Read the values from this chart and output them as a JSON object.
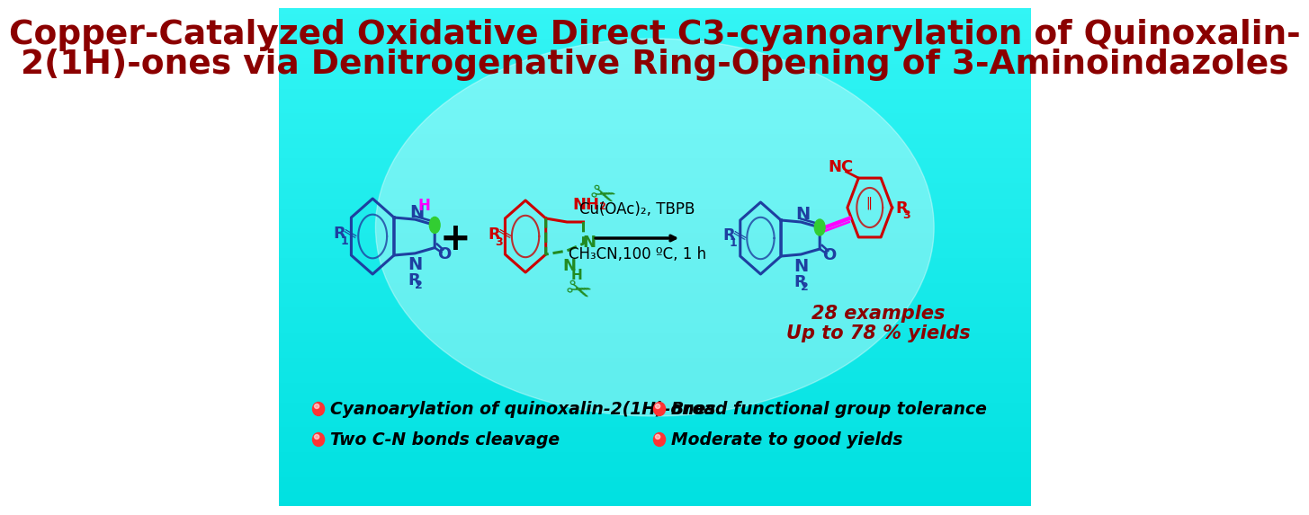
{
  "title_line1": "Copper-Catalyzed Oxidative Direct C3-cyanoarylation of Quinoxalin-",
  "title_line2": "2(1H)-ones via Denitrogenative Ring-Opening of 3-Aminoindazoles",
  "title_color": "#8B0000",
  "title_fontsize": 28,
  "conditions_line1": "Cu(OAc)₂, TBPB",
  "conditions_line2": "CH₃CN,100 ºC, 1 h",
  "bullet_points_left": [
    "Cyanoarylation of quinoxalin-2(1H)-ones",
    "Two C-N bonds cleavage"
  ],
  "bullet_points_right": [
    "Broad functional group tolerance",
    "Moderate to good yields"
  ],
  "examples_text": "28 examples",
  "yields_text": "Up to 78 % yields",
  "bullet_color": "#FF3333",
  "bullet_text_color": "#000000",
  "examples_color": "#8B0000",
  "blue_color": "#1E3FA0",
  "red_color": "#CC0000",
  "green_color": "#228B22",
  "magenta_color": "#FF00FF",
  "atom_green": "#32CD32"
}
